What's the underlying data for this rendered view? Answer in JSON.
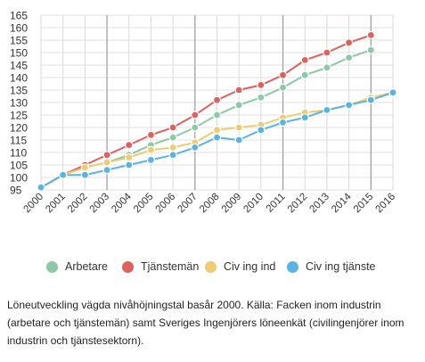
{
  "chart_data": {
    "type": "line",
    "x": [
      "2000",
      "2001",
      "2002",
      "2003",
      "2004",
      "2005",
      "2006",
      "2007",
      "2008",
      "2009",
      "2010",
      "2011",
      "2012",
      "2013",
      "2014",
      "2015",
      "2016"
    ],
    "ylim": [
      95,
      165
    ],
    "yticks": [
      95,
      100,
      105,
      110,
      115,
      120,
      125,
      130,
      135,
      140,
      145,
      150,
      155,
      160,
      165
    ],
    "grid": "vertical and horizontal",
    "legend_position": "bottom",
    "series": [
      {
        "name": "Arbetare",
        "color": "#8cc9a5",
        "values": [
          96,
          101,
          104,
          106,
          109,
          113,
          116,
          120,
          125,
          129,
          132,
          136,
          141,
          144,
          148,
          151,
          null
        ]
      },
      {
        "name": "Tjänstemän",
        "color": "#e0605e",
        "values": [
          96,
          101,
          105,
          109,
          113,
          117,
          120,
          125,
          131,
          135,
          137,
          141,
          147,
          150,
          154,
          157,
          null
        ]
      },
      {
        "name": "Civ ing ind",
        "color": "#efcb72",
        "values": [
          96,
          101,
          104,
          106,
          108,
          111,
          112,
          114,
          119,
          120,
          121,
          124,
          126,
          127,
          129,
          132,
          134
        ]
      },
      {
        "name": "Civ ing tjänste",
        "color": "#5ab4e3",
        "values": [
          96,
          101,
          101,
          103,
          105,
          107,
          109,
          112,
          116,
          115,
          119,
          122,
          124,
          127,
          129,
          131,
          134
        ]
      }
    ]
  },
  "caption": "Löneutveckling vägda nivåhöjningstal basår 2000. Källa: Facken inom industrin (arbetare och tjänstemän) samt Sveriges Ingenjörers löneenkät (civilingenjörer inom industrin och tjänstesektorn)."
}
